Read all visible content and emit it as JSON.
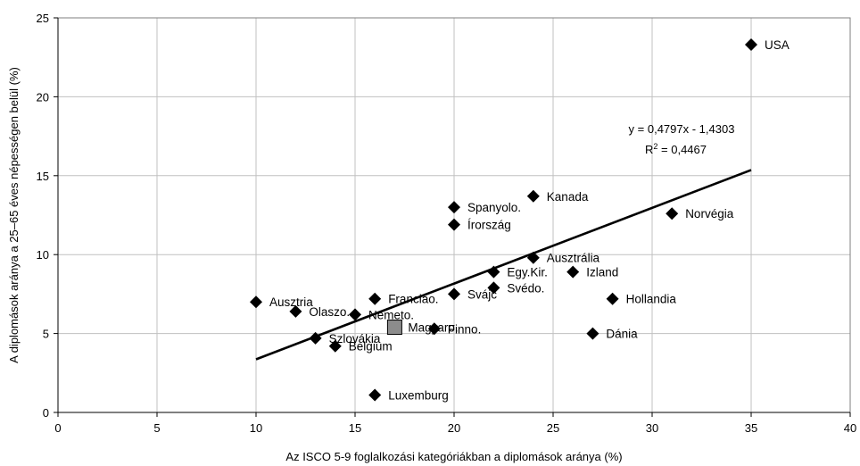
{
  "chart_data": {
    "type": "scatter",
    "xlabel": "Az ISCO 5-9 foglalkozási kategóriákban a diplomások aránya (%)",
    "ylabel": "A diplomások aránya a 25–65 éves népességen belül (%)",
    "xlim": [
      0,
      40
    ],
    "ylim": [
      0,
      25
    ],
    "xticks": [
      0,
      5,
      10,
      15,
      20,
      25,
      30,
      35,
      40
    ],
    "yticks": [
      0,
      5,
      10,
      15,
      20,
      25
    ],
    "grid": true,
    "points": [
      {
        "label": "USA",
        "x": 35,
        "y": 23.3,
        "marker": "diamond"
      },
      {
        "label": "Kanada",
        "x": 24,
        "y": 13.7,
        "marker": "diamond"
      },
      {
        "label": "Spanyolo.",
        "x": 20,
        "y": 13.0,
        "marker": "diamond"
      },
      {
        "label": "Norvégia",
        "x": 31,
        "y": 12.6,
        "marker": "diamond"
      },
      {
        "label": "Írország",
        "x": 20,
        "y": 11.9,
        "marker": "diamond"
      },
      {
        "label": "Ausztrália",
        "x": 24,
        "y": 9.8,
        "marker": "diamond"
      },
      {
        "label": "Egy.Kir.",
        "x": 22,
        "y": 8.9,
        "marker": "diamond"
      },
      {
        "label": "Izland",
        "x": 26,
        "y": 8.9,
        "marker": "diamond"
      },
      {
        "label": "Svédo.",
        "x": 22,
        "y": 7.9,
        "marker": "diamond"
      },
      {
        "label": "Svájc",
        "x": 20,
        "y": 7.5,
        "marker": "diamond"
      },
      {
        "label": "Franciao.",
        "x": 16,
        "y": 7.2,
        "marker": "diamond"
      },
      {
        "label": "Hollandia",
        "x": 28,
        "y": 7.2,
        "marker": "diamond"
      },
      {
        "label": "Ausztria",
        "x": 10,
        "y": 7.0,
        "marker": "diamond"
      },
      {
        "label": "Olaszo.",
        "x": 12,
        "y": 6.4,
        "marker": "diamond"
      },
      {
        "label": "Németo.",
        "x": 15,
        "y": 6.2,
        "marker": "diamond"
      },
      {
        "label": "Magyaro.",
        "x": 17,
        "y": 5.4,
        "marker": "square"
      },
      {
        "label": "Finno.",
        "x": 19,
        "y": 5.3,
        "marker": "diamond"
      },
      {
        "label": "Dánia",
        "x": 27,
        "y": 5.0,
        "marker": "diamond"
      },
      {
        "label": "Szlovákia",
        "x": 13,
        "y": 4.7,
        "marker": "diamond"
      },
      {
        "label": "Belgium",
        "x": 14,
        "y": 4.2,
        "marker": "diamond"
      },
      {
        "label": "Luxemburg",
        "x": 16,
        "y": 1.1,
        "marker": "diamond"
      }
    ],
    "trendline": {
      "slope": 0.4797,
      "intercept": -1.4303,
      "x_range": [
        10,
        35
      ],
      "equation": "y = 0,4797x - 1,4303",
      "r2_prefix": "R",
      "r2_value": " = 0,4467"
    },
    "colors": {
      "marker": "#000000",
      "highlight_fill": "#8c8c8c",
      "grid": "#c0c0c0",
      "axis": "#000000",
      "trendline": "#000000"
    }
  }
}
